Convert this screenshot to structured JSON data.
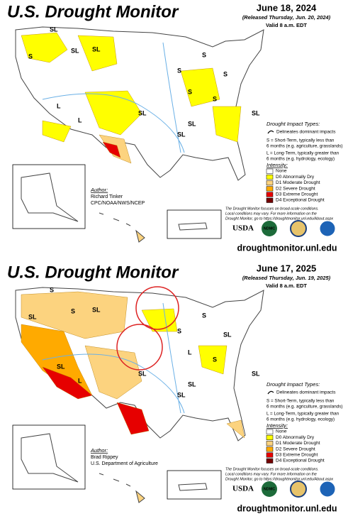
{
  "panels": [
    {
      "title": "U.S. Drought Monitor",
      "date": "June 18, 2024",
      "released": "(Released Thursday, Jun. 20, 2024)",
      "valid": "Valid 8 a.m. EDT",
      "impact_heading": "Drought Impact Types:",
      "impact_line": "Delineates dominant impacts",
      "impact_s": [
        "S = Short-Term, typically less than",
        "6 months (e.g. agriculture, grasslands)"
      ],
      "impact_l": [
        "L = Long-Term, typically greater than",
        "6 months (e.g. hydrology, ecology)"
      ],
      "intensity_heading": "Intensity:",
      "legend": [
        {
          "label": "None",
          "color": "#ffffff"
        },
        {
          "label": "D0 Abnormally Dry",
          "color": "#ffff00"
        },
        {
          "label": "D1 Moderate Drought",
          "color": "#fcd37f"
        },
        {
          "label": "D2 Severe Drought",
          "color": "#ffaa00"
        },
        {
          "label": "D3 Extreme Drought",
          "color": "#e60000"
        },
        {
          "label": "D4 Exceptional Drought",
          "color": "#730000"
        }
      ],
      "author_heading": "Author:",
      "author": "Richard Tinker",
      "author_org": "CPC/NOAA/NWS/NCEP",
      "disclaimer": [
        "The Drought Monitor focuses on broad-scale conditions.",
        "Local conditions may vary. For more information on the",
        "Drought Monitor, go to https://droughtmonitor.unl.edu/About.aspx"
      ],
      "logos": [
        "USDA",
        "NDMC"
      ],
      "url": "droughtmonitor.unl.edu",
      "map_labels": [
        "SL",
        "SL",
        "S",
        "SL",
        "SL",
        "L",
        "SL",
        "S",
        "S",
        "S",
        "SL",
        "S",
        "SL",
        "S",
        "L"
      ]
    },
    {
      "title": "U.S. Drought Monitor",
      "date": "June 17, 2025",
      "released": "(Released Thursday, Jun. 19, 2025)",
      "valid": "Valid 8 a.m. EDT",
      "impact_heading": "Drought Impact Types:",
      "impact_line": "Delineates dominant impacts",
      "impact_s": [
        "S = Short-Term, typically less than",
        "6 months (e.g. agriculture, grasslands)"
      ],
      "impact_l": [
        "L = Long-Term, typically greater than",
        "6 months (e.g. hydrology, ecology)"
      ],
      "intensity_heading": "Intensity:",
      "legend": [
        {
          "label": "None",
          "color": "#ffffff"
        },
        {
          "label": "D0 Abnormally Dry",
          "color": "#ffff00"
        },
        {
          "label": "D1 Moderate Drought",
          "color": "#fcd37f"
        },
        {
          "label": "D2 Severe Drought",
          "color": "#ffaa00"
        },
        {
          "label": "D3 Extreme Drought",
          "color": "#e60000"
        },
        {
          "label": "D4 Exceptional Drought",
          "color": "#730000"
        }
      ],
      "author_heading": "Author:",
      "author": "Brad Rippey",
      "author_org": "U.S. Department of Agriculture",
      "disclaimer": [
        "The Drought Monitor focuses on broad-scale conditions.",
        "Local conditions may vary. For more information on the",
        "Drought Monitor, go to https://droughtmonitor.unl.edu/About.aspx"
      ],
      "logos": [
        "USDA",
        "NDMC"
      ],
      "url": "droughtmonitor.unl.edu",
      "map_labels": [
        "S",
        "S",
        "SL",
        "SL",
        "SL",
        "L",
        "SL",
        "S",
        "L",
        "SL",
        "SL",
        "S",
        "SL",
        "S",
        "SL"
      ]
    }
  ]
}
